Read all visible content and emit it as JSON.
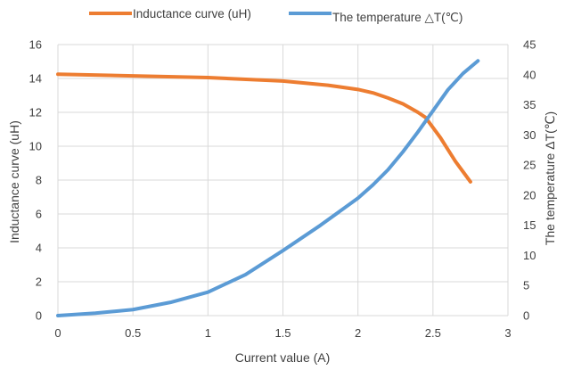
{
  "chart_data": {
    "type": "line",
    "title": "",
    "xlabel": "Current value (A)",
    "ylabel": "Inductance curve (uH)",
    "y2label": "The temperature ΔT(℃)",
    "xlim": [
      0,
      3
    ],
    "ylim": [
      0,
      16
    ],
    "y2lim": [
      0,
      45
    ],
    "x_ticks": [
      "0",
      "0.5",
      "1",
      "1.5",
      "2",
      "2.5",
      "3"
    ],
    "y_ticks": [
      "0",
      "2",
      "4",
      "6",
      "8",
      "10",
      "12",
      "14",
      "16"
    ],
    "y2_ticks": [
      "0",
      "5",
      "10",
      "15",
      "20",
      "25",
      "30",
      "35",
      "40",
      "45"
    ],
    "grid": true,
    "legend_position": "top",
    "series": [
      {
        "name": "Inductance curve (uH)",
        "axis": "left",
        "color": "#ED7D31",
        "x": [
          0,
          0.5,
          1.0,
          1.5,
          1.8,
          2.0,
          2.1,
          2.2,
          2.3,
          2.4,
          2.45,
          2.5,
          2.55,
          2.6,
          2.65,
          2.7,
          2.75
        ],
        "y": [
          14.25,
          14.15,
          14.05,
          13.85,
          13.6,
          13.35,
          13.15,
          12.85,
          12.5,
          12.0,
          11.7,
          11.1,
          10.5,
          9.8,
          9.1,
          8.5,
          7.9
        ]
      },
      {
        "name": "The temperature  △T(℃)",
        "axis": "right",
        "color": "#5B9BD5",
        "x": [
          0,
          0.25,
          0.5,
          0.75,
          1.0,
          1.25,
          1.5,
          1.75,
          2.0,
          2.1,
          2.2,
          2.3,
          2.4,
          2.5,
          2.6,
          2.7,
          2.8
        ],
        "y": [
          0,
          0.4,
          1.0,
          2.2,
          3.9,
          6.8,
          10.8,
          15.0,
          19.5,
          21.7,
          24.2,
          27.2,
          30.5,
          34.0,
          37.5,
          40.2,
          42.3
        ]
      }
    ]
  }
}
